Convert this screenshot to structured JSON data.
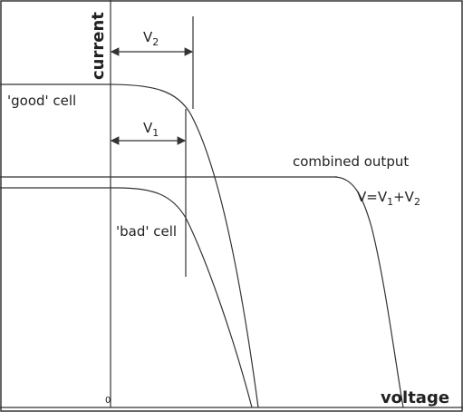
{
  "axes": {
    "y_label": "current",
    "x_label": "voltage",
    "origin": "0"
  },
  "curves": {
    "good": "'good' cell",
    "bad": "'bad' cell",
    "combined": "combined output"
  },
  "dimensions": {
    "v2": {
      "base": "V",
      "sub": "2"
    },
    "v1": {
      "base": "V",
      "sub": "1"
    }
  },
  "equation": [
    "V=V",
    "1",
    "+V",
    "2"
  ]
}
